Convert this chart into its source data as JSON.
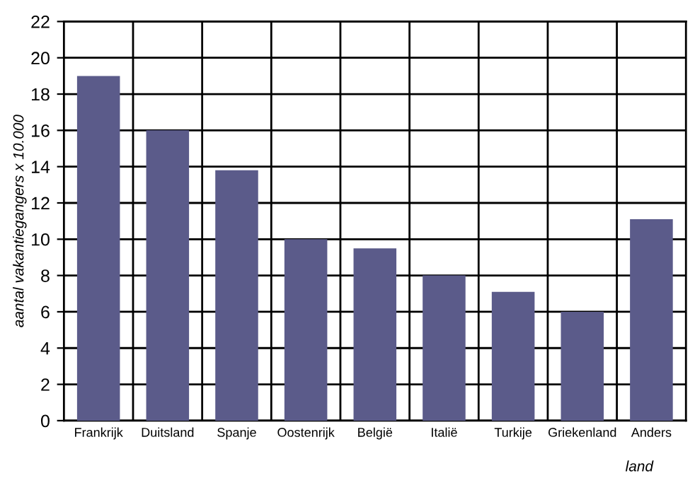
{
  "chart_data": {
    "type": "bar",
    "categories": [
      "Frankrijk",
      "Duitsland",
      "Spanje",
      "Oostenrijk",
      "België",
      "Italië",
      "Turkije",
      "Griekenland",
      "Anders"
    ],
    "values": [
      19,
      16,
      13.8,
      10,
      9.5,
      8,
      7.1,
      6,
      11.1
    ],
    "color": "#5b5b8a",
    "xlabel": "land",
    "ylabel": "aantal vakantiegangers x 10.000",
    "ylim": [
      0,
      22
    ],
    "yticks": [
      0,
      2,
      4,
      6,
      8,
      10,
      12,
      14,
      16,
      18,
      20,
      22
    ],
    "grid": true
  }
}
